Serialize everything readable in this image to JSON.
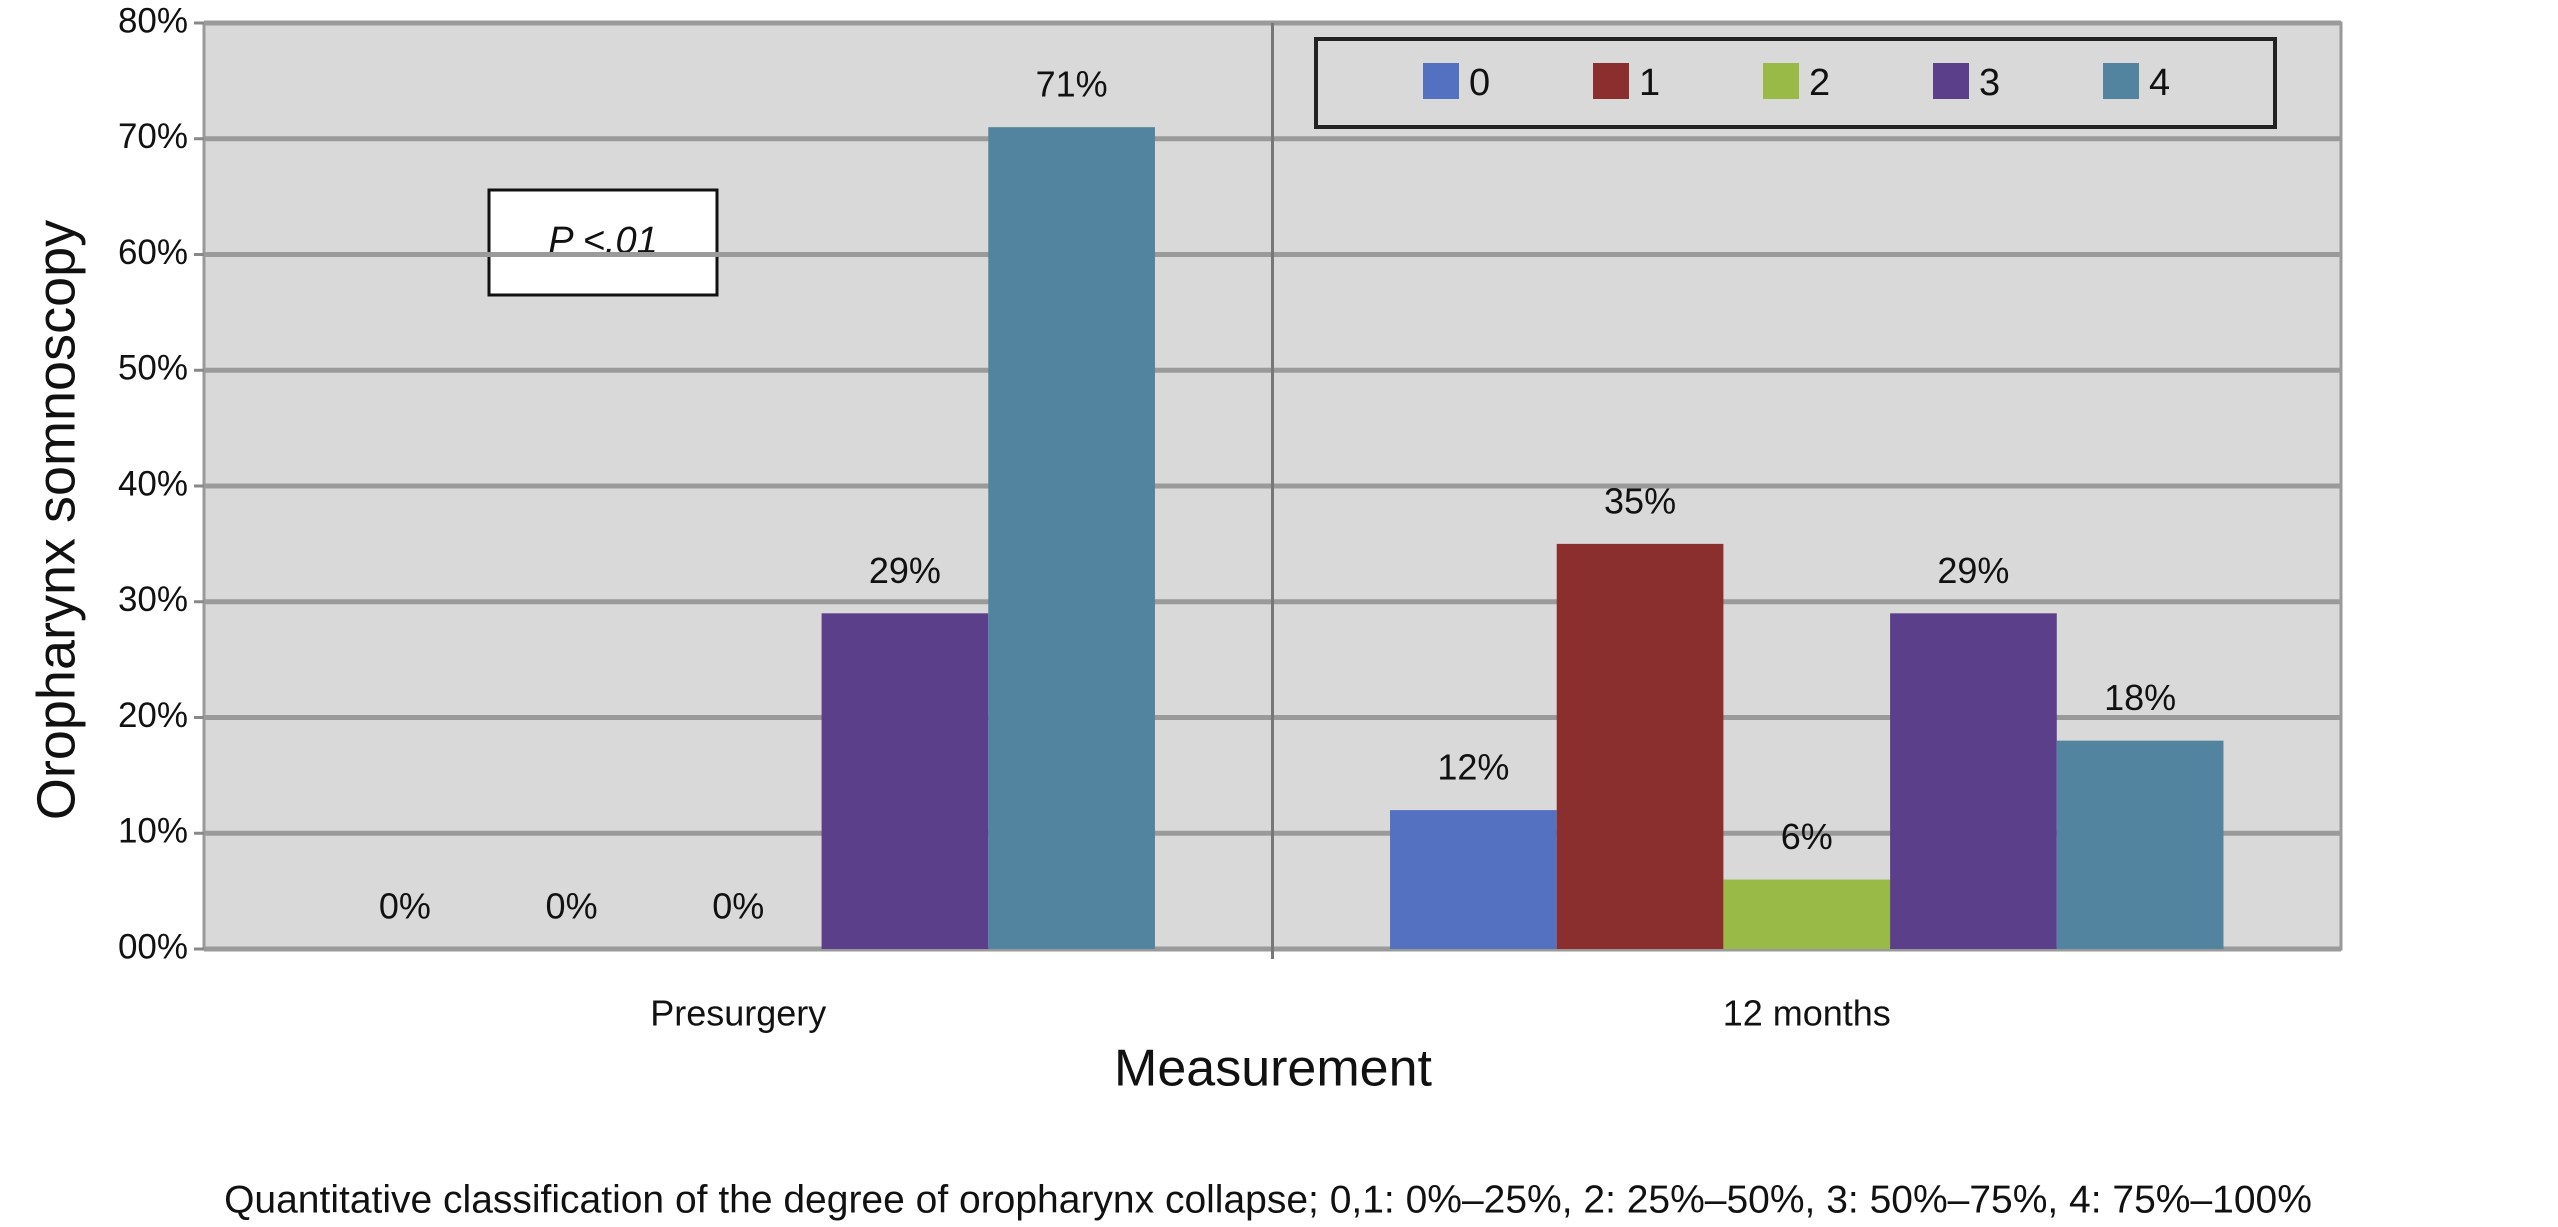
{
  "chart_data": {
    "type": "bar",
    "y_label": "Oropharynx somnoscopy",
    "x_label": "Measurement",
    "annotations": [
      "P <.01"
    ],
    "footnote": "Quantitative classification of the degree of oropharynx collapse; 0,1:  0%–25%, 2: 25%–50%, 3: 50%–75%, 4: 75%–100%",
    "categories": [
      "Presurgery",
      "12 months"
    ],
    "series": [
      {
        "name": "0",
        "color": "#5470c0",
        "values": [
          0,
          12
        ],
        "value_labels": [
          "0%",
          "12%"
        ]
      },
      {
        "name": "1",
        "color": "#8b2f2e",
        "values": [
          0,
          35
        ],
        "value_labels": [
          "0%",
          "35%"
        ]
      },
      {
        "name": "2",
        "color": "#9aba48",
        "values": [
          0,
          6
        ],
        "value_labels": [
          "0%",
          "6%"
        ]
      },
      {
        "name": "3",
        "color": "#5c3f8a",
        "values": [
          29,
          29
        ],
        "value_labels": [
          "29%",
          "29%"
        ]
      },
      {
        "name": "4",
        "color": "#53849f",
        "values": [
          71,
          18
        ],
        "value_labels": [
          "71%",
          "18%"
        ]
      }
    ],
    "ylim": [
      0,
      80
    ],
    "yticks": [
      {
        "value": 0,
        "label": "00%"
      },
      {
        "value": 10,
        "label": "10%"
      },
      {
        "value": 20,
        "label": "20%"
      },
      {
        "value": 30,
        "label": "30%"
      },
      {
        "value": 40,
        "label": "40%"
      },
      {
        "value": 50,
        "label": "50%"
      },
      {
        "value": 60,
        "label": "60%"
      },
      {
        "value": 70,
        "label": "70%"
      },
      {
        "value": 80,
        "label": "80%"
      }
    ],
    "grid": true,
    "legend": "top-right"
  }
}
